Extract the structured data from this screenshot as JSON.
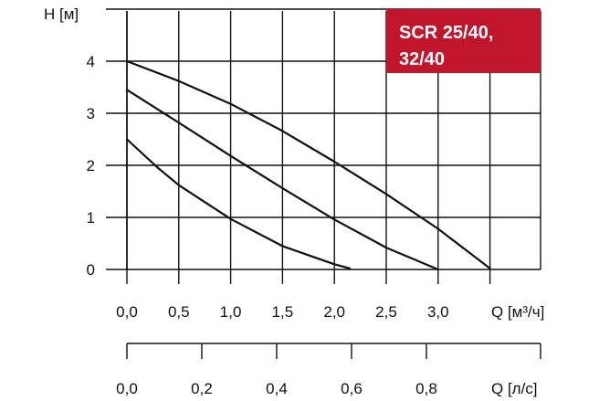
{
  "chart_data": [
    {
      "type": "line",
      "title": "SCR 25/40,",
      "title_line2": "32/40",
      "title_box_color": "#c0152b",
      "ylabel": "H [м]",
      "xlabel": "Q [м³/ч]",
      "xlim": [
        0,
        3.5
      ],
      "ylim": [
        0,
        5
      ],
      "x_ticks": [
        "0,0",
        "0,5",
        "1,0",
        "1,5",
        "2,0",
        "2,5",
        "3,0"
      ],
      "y_ticks": [
        "0",
        "1",
        "2",
        "3",
        "4"
      ],
      "grid": true,
      "line_color": "#111111",
      "series": [
        {
          "x": [
            0.0,
            0.5,
            1.0,
            1.5,
            2.0,
            2.5,
            3.0,
            3.5
          ],
          "y": [
            4.0,
            3.62,
            3.18,
            2.66,
            2.07,
            1.45,
            0.78,
            0.02
          ]
        },
        {
          "x": [
            0.0,
            0.5,
            1.0,
            1.5,
            2.0,
            2.5,
            3.0
          ],
          "y": [
            3.45,
            2.82,
            2.18,
            1.56,
            0.96,
            0.42,
            0.0
          ]
        },
        {
          "x": [
            0.0,
            0.3,
            0.5,
            1.0,
            1.5,
            2.0,
            2.15
          ],
          "y": [
            2.5,
            1.95,
            1.62,
            0.97,
            0.45,
            0.1,
            0.02
          ]
        }
      ]
    },
    {
      "type": "axis",
      "xlabel": "Q [л/с]",
      "xlim": [
        0,
        0.97
      ],
      "x_ticks": [
        "0,0",
        "0,2",
        "0,4",
        "0,6",
        "0,8"
      ],
      "x_tick_values": [
        0,
        0.2,
        0.4,
        0.6,
        0.8
      ]
    }
  ]
}
